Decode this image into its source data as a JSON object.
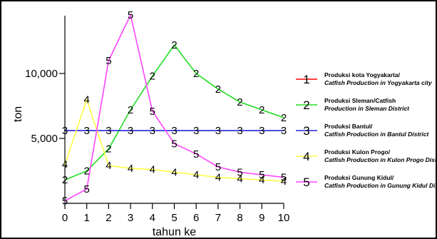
{
  "chart_data": {
    "type": "line",
    "xlabel": "tahun ke",
    "ylabel": "ton",
    "xlim": [
      0,
      10
    ],
    "ylim": [
      0,
      14500
    ],
    "x_ticks": [
      0,
      1,
      2,
      3,
      4,
      5,
      6,
      7,
      8,
      9,
      10
    ],
    "y_ticks": [
      {
        "value": 5000,
        "label": "5,000"
      },
      {
        "value": 10000,
        "label": "10,000"
      }
    ],
    "grid": false,
    "legend_position": "right",
    "series": [
      {
        "id": "1",
        "name": "Produksi kota Yogyakarta/",
        "name_sub": "Catfish Production in Yogyakarta city",
        "color": "#ff0000",
        "marker": "1",
        "x": [],
        "y": []
      },
      {
        "id": "2",
        "name": "Produksi  Sleman/Catfish",
        "name_sub": "Production in Sleman District",
        "color": "#22dd22",
        "marker": "2",
        "x": [
          0,
          1,
          2,
          3,
          4,
          5,
          6,
          7,
          8,
          9,
          10
        ],
        "y": [
          1800,
          2500,
          4200,
          7200,
          9800,
          12200,
          10000,
          8800,
          7800,
          7200,
          6600
        ]
      },
      {
        "id": "3",
        "name": "Produksi  Bantul/",
        "name_sub": "Catfish Production in Bantul District",
        "color": "#2222dd",
        "marker": "3",
        "x": [
          0,
          1,
          2,
          3,
          4,
          5,
          6,
          7,
          8,
          9,
          10
        ],
        "y": [
          5600,
          5600,
          5600,
          5600,
          5600,
          5600,
          5600,
          5600,
          5600,
          5600,
          5600
        ]
      },
      {
        "id": "4",
        "name": "Produksi  Kulon Progo/",
        "name_sub": "Catfish Production in Kulon Progo District",
        "color": "#ffff44",
        "marker": "4",
        "x": [
          0,
          1,
          2,
          3,
          4,
          5,
          6,
          7,
          8,
          9,
          10
        ],
        "y": [
          3000,
          8000,
          2900,
          2700,
          2600,
          2400,
          2200,
          2000,
          1900,
          1800,
          1700
        ]
      },
      {
        "id": "5",
        "name": "Produksi  Gunung Kidul/",
        "name_sub": "Catfish Production in Gunung Kidul District",
        "color": "#ff44ff",
        "marker": "5",
        "x": [
          0,
          1,
          2,
          3,
          4,
          5,
          6,
          7,
          8,
          9,
          10
        ],
        "y": [
          200,
          1100,
          11000,
          14500,
          7100,
          4600,
          3800,
          2800,
          2400,
          2200,
          2000
        ]
      }
    ]
  }
}
